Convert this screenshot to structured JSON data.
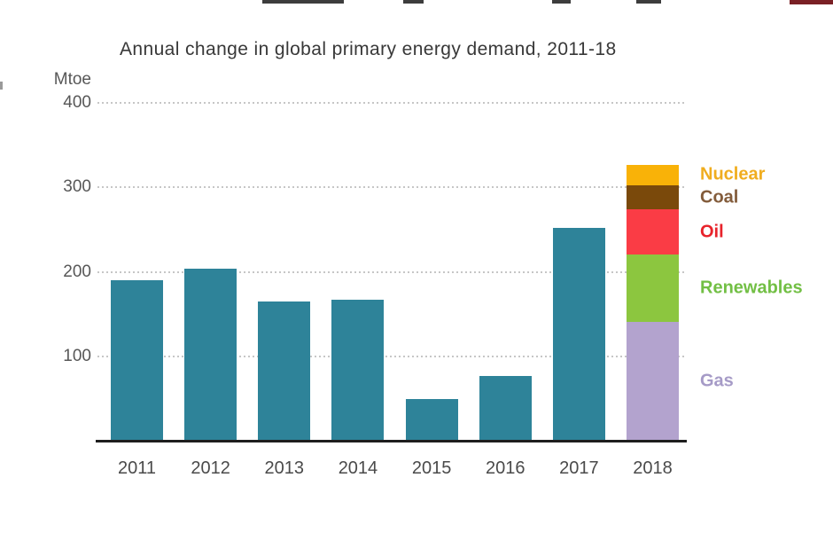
{
  "chart_data": {
    "type": "bar",
    "title": "Annual change in global primary energy demand, 2011-18",
    "unit_label": "Mtoe",
    "categories": [
      "2011",
      "2012",
      "2013",
      "2014",
      "2015",
      "2016",
      "2017",
      "2018"
    ],
    "values_total": [
      190,
      204,
      165,
      167,
      49,
      77,
      252,
      327
    ],
    "bar_color": "#2e8399",
    "yticks": [
      400,
      300,
      200,
      100
    ],
    "ylim": [
      0,
      400
    ],
    "grid": "dotted horizontal gridlines at 100/200/300/400",
    "legend_position": "right of 2018 stacked bar, each label centered on its segment",
    "stacked_2018": [
      {
        "name": "Gas",
        "value": 141,
        "color": "#b3a3ce",
        "label_color": "#a69bc7"
      },
      {
        "name": "Renewables",
        "value": 79,
        "color": "#8cc63f",
        "label_color": "#72bf44"
      },
      {
        "name": "Oil",
        "value": 54,
        "color": "#fa3c45",
        "label_color": "#e8232b"
      },
      {
        "name": "Coal",
        "value": 28,
        "color": "#7a490b",
        "label_color": "#835c3b"
      },
      {
        "name": "Nuclear",
        "value": 25,
        "color": "#f9b208",
        "label_color": "#f0ad1f"
      }
    ]
  },
  "decor": {
    "cropped_text_fragment_color": "#3d3d3d",
    "cropped_text_fragment_color_red": "#7a2025",
    "axis_line_color": "#1e1e1e",
    "gridline_color": "#c6c6c6",
    "title_color": "#383838",
    "axis_text_color": "#575757"
  }
}
